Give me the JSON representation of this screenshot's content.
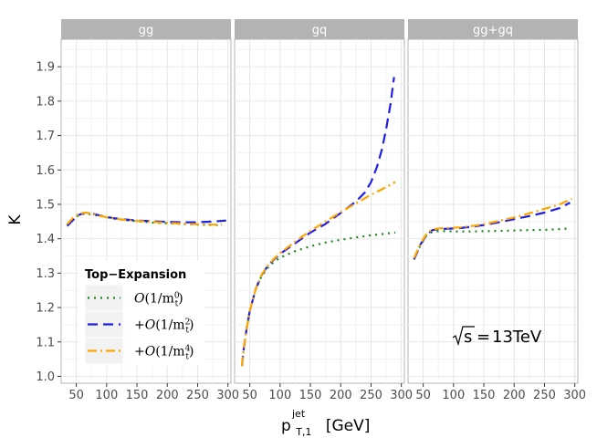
{
  "chart_data": {
    "type": "line",
    "ylabel": "K",
    "xlabel": "p_{T,1}^{jet} [GeV]",
    "xlabel_parts": {
      "main": "p",
      "sup": "jet",
      "sub": "T,1",
      "unit": "[GeV]"
    },
    "xlim": [
      25,
      305
    ],
    "ylim": [
      0.98,
      1.98
    ],
    "x_ticks": [
      50,
      100,
      150,
      200,
      250,
      300
    ],
    "x_tick_labels": [
      "50",
      "100",
      "150",
      "200",
      "250",
      "300"
    ],
    "y_ticks": [
      1.0,
      1.1,
      1.2,
      1.3,
      1.4,
      1.5,
      1.6,
      1.7,
      1.8,
      1.9
    ],
    "y_tick_labels": [
      "1.0",
      "1.1",
      "1.2",
      "1.3",
      "1.4",
      "1.5",
      "1.6",
      "1.7",
      "1.8",
      "1.9"
    ],
    "grid": true,
    "annotation": "13TeV",
    "annotation_lhs": "s",
    "legend": {
      "title": "Top−Expansion",
      "position": "bottom-left of first panel",
      "entries": [
        {
          "name": "O(1/m_t^0)",
          "prefix": "",
          "O": "O",
          "pow": "0",
          "color": "#1a8a1a",
          "dash": "2,5"
        },
        {
          "name": "+O(1/m_t^2)",
          "prefix": "+",
          "O": "O",
          "pow": "2",
          "color": "#1f1fe6",
          "dash": "11,6"
        },
        {
          "name": "+O(1/m_t^4)",
          "prefix": "+",
          "O": "O",
          "pow": "4",
          "color": "#ffa500",
          "dash": "10,4,2,4"
        }
      ]
    },
    "panels": [
      {
        "title": "gg",
        "series": [
          {
            "name": "O(1/m_t^0)",
            "x": [
              35,
              45,
              55,
              65,
              75,
              90,
              110,
              130,
              150,
              175,
              200,
              225,
              250,
              275,
              290
            ],
            "y": [
              1.44,
              1.458,
              1.47,
              1.473,
              1.471,
              1.466,
              1.459,
              1.454,
              1.451,
              1.447,
              1.445,
              1.443,
              1.441,
              1.44,
              1.44
            ]
          },
          {
            "name": "+O(1/m_t^2)",
            "x": [
              35,
              45,
              55,
              65,
              75,
              90,
              110,
              130,
              150,
              175,
              200,
              225,
              250,
              275,
              297
            ],
            "y": [
              1.437,
              1.455,
              1.47,
              1.476,
              1.474,
              1.467,
              1.46,
              1.456,
              1.453,
              1.451,
              1.449,
              1.448,
              1.448,
              1.45,
              1.453
            ]
          },
          {
            "name": "+O(1/m_t^4)",
            "x": [
              35,
              45,
              55,
              65,
              75,
              90,
              110,
              130,
              150,
              175,
              200,
              225,
              250,
              275,
              290
            ],
            "y": [
              1.442,
              1.462,
              1.473,
              1.476,
              1.473,
              1.466,
              1.459,
              1.455,
              1.452,
              1.449,
              1.446,
              1.444,
              1.442,
              1.441,
              1.441
            ]
          }
        ]
      },
      {
        "title": "gq",
        "series": [
          {
            "name": "O(1/m_t^0)",
            "x": [
              37,
              40,
              45,
              50,
              60,
              70,
              80,
              90,
              100,
              125,
              150,
              175,
              200,
              225,
              250,
              275,
              290
            ],
            "y": [
              1.03,
              1.08,
              1.14,
              1.19,
              1.255,
              1.293,
              1.316,
              1.333,
              1.345,
              1.364,
              1.378,
              1.389,
              1.397,
              1.404,
              1.41,
              1.415,
              1.418
            ]
          },
          {
            "name": "+O(1/m_t^2)",
            "x": [
              37,
              40,
              45,
              50,
              60,
              70,
              80,
              90,
              100,
              125,
              150,
              175,
              200,
              225,
              240,
              250,
              260,
              268,
              275,
              282,
              288
            ],
            "y": [
              1.03,
              1.08,
              1.14,
              1.19,
              1.255,
              1.295,
              1.322,
              1.34,
              1.356,
              1.387,
              1.418,
              1.443,
              1.475,
              1.508,
              1.535,
              1.565,
              1.61,
              1.66,
              1.72,
              1.79,
              1.87
            ]
          },
          {
            "name": "+O(1/m_t^4)",
            "x": [
              37,
              40,
              45,
              50,
              60,
              70,
              80,
              90,
              100,
              125,
              150,
              175,
              200,
              225,
              250,
              275,
              290
            ],
            "y": [
              1.03,
              1.08,
              1.14,
              1.19,
              1.255,
              1.297,
              1.323,
              1.342,
              1.358,
              1.392,
              1.423,
              1.45,
              1.477,
              1.503,
              1.528,
              1.55,
              1.565
            ]
          }
        ]
      },
      {
        "title": "gg+gq",
        "series": [
          {
            "name": "O(1/m_t^0)",
            "x": [
              35,
              45,
              55,
              65,
              75,
              90,
              110,
              130,
              150,
              175,
              200,
              225,
              250,
              275,
              292
            ],
            "y": [
              1.34,
              1.38,
              1.408,
              1.42,
              1.422,
              1.422,
              1.421,
              1.421,
              1.422,
              1.423,
              1.424,
              1.425,
              1.426,
              1.428,
              1.43
            ]
          },
          {
            "name": "+O(1/m_t^2)",
            "x": [
              35,
              45,
              55,
              65,
              75,
              90,
              110,
              130,
              150,
              175,
              200,
              225,
              250,
              275,
              292
            ],
            "y": [
              1.34,
              1.382,
              1.41,
              1.425,
              1.428,
              1.429,
              1.431,
              1.435,
              1.44,
              1.448,
              1.457,
              1.466,
              1.476,
              1.489,
              1.505
            ]
          },
          {
            "name": "+O(1/m_t^4)",
            "x": [
              35,
              45,
              55,
              65,
              75,
              90,
              110,
              130,
              150,
              175,
              200,
              225,
              250,
              275,
              295
            ],
            "y": [
              1.344,
              1.384,
              1.413,
              1.427,
              1.43,
              1.431,
              1.433,
              1.437,
              1.442,
              1.452,
              1.462,
              1.474,
              1.487,
              1.5,
              1.516
            ]
          }
        ]
      }
    ]
  }
}
